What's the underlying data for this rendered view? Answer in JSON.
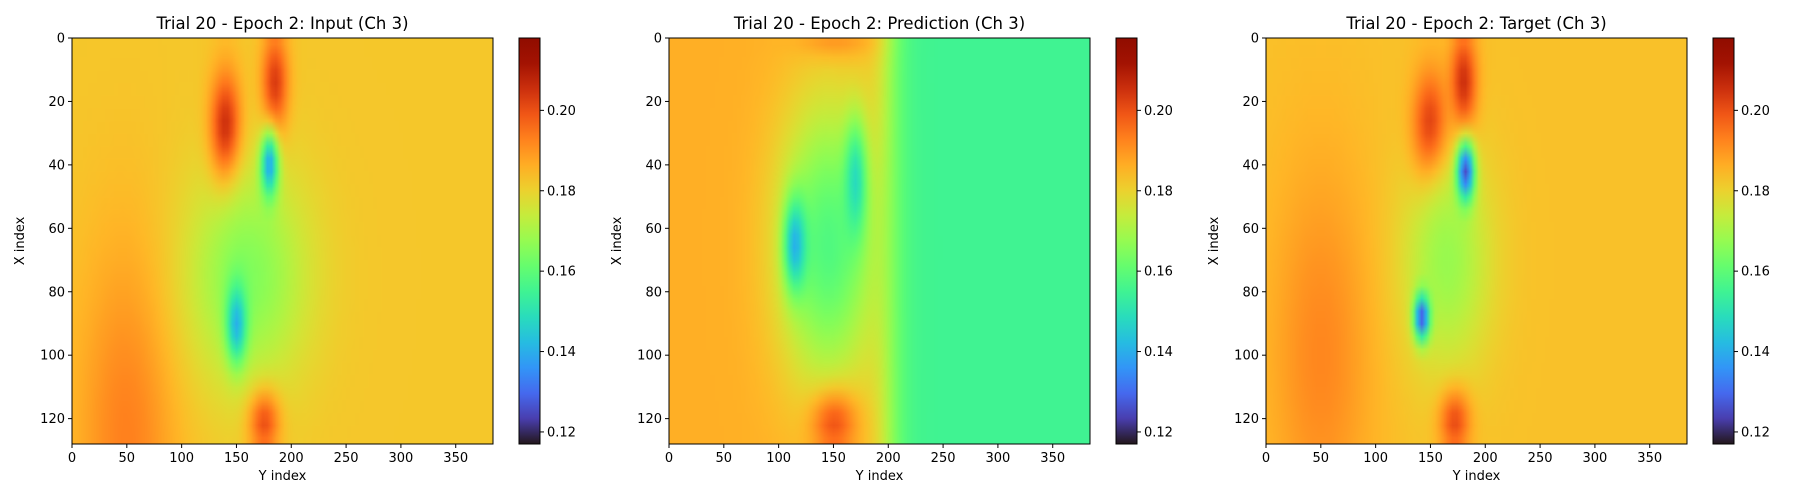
{
  "chart_data": [
    {
      "type": "heatmap",
      "title": "Trial 20 - Epoch 2: Input (Ch 3)",
      "xlabel": "Y index",
      "ylabel": "X index",
      "xlim": [
        0,
        384
      ],
      "ylim": [
        128,
        0
      ],
      "x_ticks": [
        0,
        50,
        100,
        150,
        200,
        250,
        300,
        350
      ],
      "y_ticks": [
        0,
        20,
        40,
        60,
        80,
        100,
        120
      ],
      "colormap": "turbo",
      "colorbar": {
        "range": [
          0.117,
          0.218
        ],
        "ticks": [
          "0.12",
          "0.14",
          "0.16",
          "0.18",
          "0.20"
        ]
      },
      "background_value": 0.182,
      "features": [
        {
          "y": 125,
          "x": 50,
          "ry": 60,
          "rx": 45,
          "value": 0.193,
          "kind": "left-warm"
        },
        {
          "y": 30,
          "x": 140,
          "ry": 18,
          "rx": 14,
          "value": 0.212,
          "kind": "hot"
        },
        {
          "y": 15,
          "x": 185,
          "ry": 16,
          "rx": 12,
          "value": 0.205,
          "kind": "hot"
        },
        {
          "y": 120,
          "x": 175,
          "ry": 10,
          "rx": 14,
          "value": 0.207,
          "kind": "hot"
        },
        {
          "y": 75,
          "x": 160,
          "ry": 35,
          "rx": 55,
          "value": 0.165,
          "kind": "cool"
        },
        {
          "y": 40,
          "x": 180,
          "ry": 10,
          "rx": 8,
          "value": 0.138,
          "kind": "cold"
        },
        {
          "y": 90,
          "x": 150,
          "ry": 12,
          "rx": 9,
          "value": 0.14,
          "kind": "cold"
        }
      ]
    },
    {
      "type": "heatmap",
      "title": "Trial 20 - Epoch 2: Prediction (Ch 3)",
      "xlabel": "Y index",
      "ylabel": "X index",
      "xlim": [
        0,
        384
      ],
      "ylim": [
        128,
        0
      ],
      "x_ticks": [
        0,
        50,
        100,
        150,
        200,
        250,
        300,
        350
      ],
      "y_ticks": [
        0,
        20,
        40,
        60,
        80,
        100,
        120
      ],
      "colormap": "turbo",
      "colorbar": {
        "range": [
          0.117,
          0.218
        ],
        "ticks": [
          "0.12",
          "0.14",
          "0.16",
          "0.18",
          "0.20"
        ]
      },
      "background_value": 0.186,
      "right_field": {
        "start": 200,
        "value": 0.155
      },
      "features": [
        {
          "y": 120,
          "x": 150,
          "ry": 10,
          "rx": 20,
          "value": 0.21,
          "kind": "hot"
        },
        {
          "y": 0,
          "x": 150,
          "ry": 6,
          "rx": 30,
          "value": 0.195,
          "kind": "warm"
        },
        {
          "y": 65,
          "x": 145,
          "ry": 45,
          "rx": 45,
          "value": 0.158,
          "kind": "cool"
        },
        {
          "y": 65,
          "x": 115,
          "ry": 14,
          "rx": 10,
          "value": 0.14,
          "kind": "cold"
        },
        {
          "y": 45,
          "x": 170,
          "ry": 18,
          "rx": 10,
          "value": 0.148,
          "kind": "cold"
        }
      ]
    },
    {
      "type": "heatmap",
      "title": "Trial 20 - Epoch 2: Target (Ch 3)",
      "xlabel": "Y index",
      "ylabel": "X index",
      "xlim": [
        0,
        384
      ],
      "ylim": [
        128,
        0
      ],
      "x_ticks": [
        0,
        50,
        100,
        150,
        200,
        250,
        300,
        350
      ],
      "y_ticks": [
        0,
        20,
        40,
        60,
        80,
        100,
        120
      ],
      "colormap": "turbo",
      "colorbar": {
        "range": [
          0.117,
          0.218
        ],
        "ticks": [
          "0.12",
          "0.14",
          "0.16",
          "0.18",
          "0.20"
        ]
      },
      "background_value": 0.183,
      "features": [
        {
          "y": 100,
          "x": 50,
          "ry": 60,
          "rx": 45,
          "value": 0.192,
          "kind": "left-warm"
        },
        {
          "y": 30,
          "x": 150,
          "ry": 18,
          "rx": 16,
          "value": 0.21,
          "kind": "hot"
        },
        {
          "y": 15,
          "x": 180,
          "ry": 16,
          "rx": 12,
          "value": 0.208,
          "kind": "hot"
        },
        {
          "y": 120,
          "x": 172,
          "ry": 10,
          "rx": 14,
          "value": 0.205,
          "kind": "hot"
        },
        {
          "y": 70,
          "x": 165,
          "ry": 35,
          "rx": 40,
          "value": 0.168,
          "kind": "cool"
        },
        {
          "y": 42,
          "x": 182,
          "ry": 9,
          "rx": 8,
          "value": 0.125,
          "kind": "cold"
        },
        {
          "y": 88,
          "x": 142,
          "ry": 7,
          "rx": 7,
          "value": 0.125,
          "kind": "cold"
        }
      ]
    }
  ]
}
